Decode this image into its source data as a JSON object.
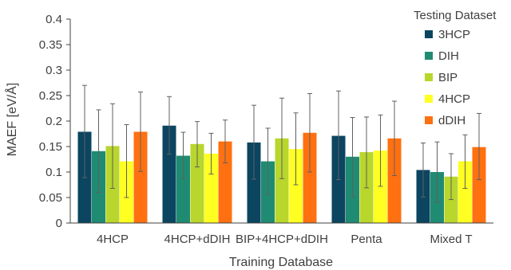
{
  "chart_data": {
    "type": "bar",
    "xlabel": "Training Database",
    "ylabel": "MAEF [eV/Å]",
    "ylim": [
      0,
      0.4
    ],
    "yticks": [
      "0",
      "0.05",
      "0.1",
      "0.15",
      "0.2",
      "0.25",
      "0.3",
      "0.35",
      "0.4"
    ],
    "grid": false,
    "legend": {
      "title": "Testing Dataset",
      "position": "right"
    },
    "categories": [
      "4HCP",
      "4HCP+dDIH",
      "BIP+4HCP+dDIH",
      "Penta",
      "Mixed T"
    ],
    "series": [
      {
        "name": "3HCP",
        "color": "#0b4560",
        "values": [
          0.179,
          0.191,
          0.158,
          0.171,
          0.104
        ],
        "err_low": [
          0.089,
          0.135,
          0.086,
          0.085,
          0.051
        ],
        "err_high": [
          0.27,
          0.248,
          0.231,
          0.259,
          0.157
        ]
      },
      {
        "name": "DIH",
        "color": "#1f8b72",
        "values": [
          0.141,
          0.132,
          0.121,
          0.13,
          0.1
        ],
        "err_low": [
          0.06,
          0.087,
          0.056,
          0.051,
          0.041
        ],
        "err_high": [
          0.222,
          0.178,
          0.186,
          0.207,
          0.159
        ]
      },
      {
        "name": "BIP",
        "color": "#b8d62c",
        "values": [
          0.151,
          0.155,
          0.166,
          0.139,
          0.091
        ],
        "err_low": [
          0.068,
          0.11,
          0.087,
          0.069,
          0.046
        ],
        "err_high": [
          0.234,
          0.199,
          0.245,
          0.208,
          0.136
        ]
      },
      {
        "name": "4HCP",
        "color": "#ffff22",
        "values": [
          0.121,
          0.136,
          0.145,
          0.142,
          0.121
        ],
        "err_low": [
          0.05,
          0.096,
          0.075,
          0.072,
          0.068
        ],
        "err_high": [
          0.193,
          0.176,
          0.216,
          0.212,
          0.173
        ]
      },
      {
        "name": "dDIH",
        "color": "#ff7010",
        "values": [
          0.179,
          0.16,
          0.177,
          0.166,
          0.149
        ],
        "err_low": [
          0.101,
          0.118,
          0.1,
          0.093,
          0.085
        ],
        "err_high": [
          0.257,
          0.202,
          0.254,
          0.239,
          0.215
        ]
      }
    ]
  }
}
